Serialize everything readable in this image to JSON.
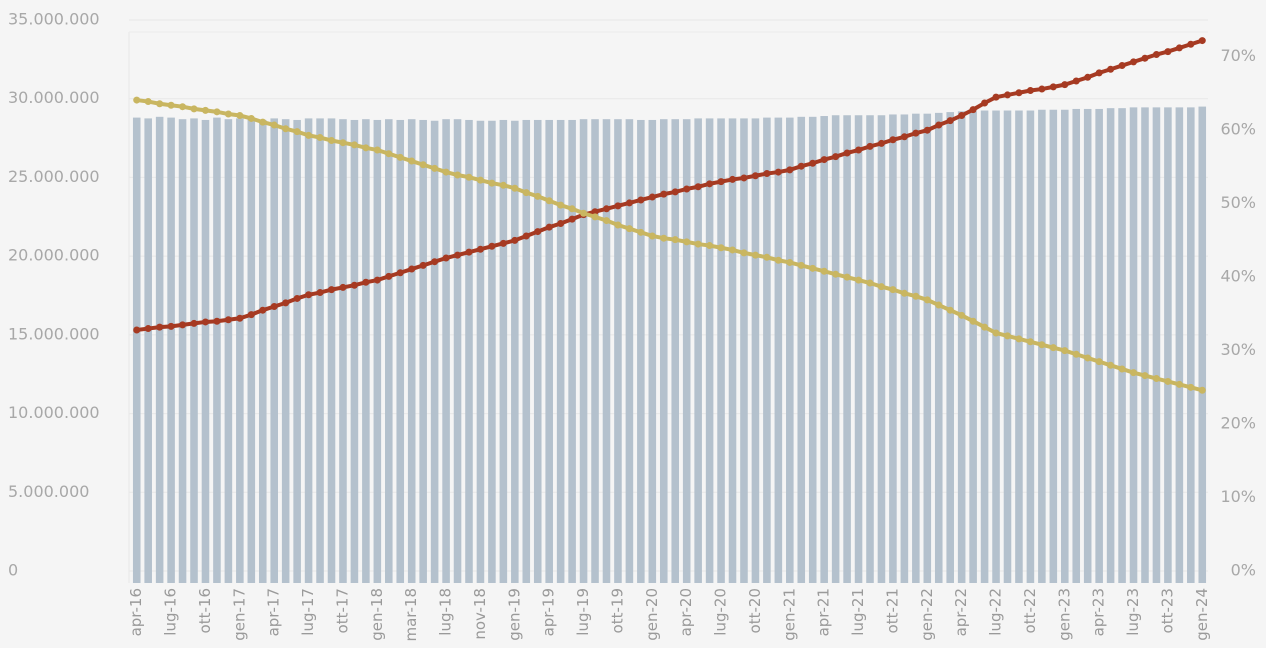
{
  "chart_data": {
    "type": "bar-line",
    "categories": [
      "apr-16",
      null,
      null,
      "lug-16",
      null,
      null,
      "ott-16",
      null,
      null,
      "gen-17",
      null,
      null,
      "apr-17",
      null,
      null,
      "lug-17",
      null,
      null,
      "ott-17",
      null,
      null,
      "gen-18",
      null,
      null,
      "mar-18",
      null,
      null,
      "lug-18",
      null,
      null,
      "nov-18",
      null,
      null,
      "gen-19",
      null,
      null,
      "apr-19",
      null,
      null,
      "lug-19",
      null,
      null,
      "ott-19",
      null,
      null,
      "gen-20",
      null,
      null,
      "apr-20",
      null,
      null,
      "lug-20",
      null,
      null,
      "ott-20",
      null,
      null,
      "gen-21",
      null,
      null,
      "apr-21",
      null,
      null,
      "lug-21",
      null,
      null,
      "ott-21",
      null,
      null,
      "gen-22",
      null,
      null,
      "apr-22",
      null,
      null,
      "lug-22",
      null,
      null,
      "ott-22",
      null,
      null,
      "gen-23",
      null,
      null,
      "apr-23",
      null,
      null,
      "lug-23",
      null,
      null,
      "ott-23",
      null,
      null,
      "gen-24"
    ],
    "series": [
      {
        "type": "bar",
        "color": "#b4c1cd",
        "values": [
          28800000,
          28750000,
          28850000,
          28800000,
          28700000,
          28750000,
          28650000,
          28800000,
          28700000,
          28750000,
          28700000,
          28650000,
          28750000,
          28700000,
          28650000,
          28750000,
          28750000,
          28750000,
          28700000,
          28650000,
          28700000,
          28650000,
          28700000,
          28650000,
          28700000,
          28650000,
          28600000,
          28700000,
          28700000,
          28650000,
          28600000,
          28600000,
          28650000,
          28600000,
          28650000,
          28650000,
          28650000,
          28650000,
          28650000,
          28700000,
          28700000,
          28700000,
          28700000,
          28700000,
          28650000,
          28650000,
          28700000,
          28700000,
          28700000,
          28750000,
          28750000,
          28750000,
          28750000,
          28750000,
          28750000,
          28800000,
          28800000,
          28800000,
          28850000,
          28850000,
          28900000,
          28950000,
          28950000,
          28950000,
          28950000,
          28950000,
          29000000,
          29000000,
          29050000,
          29050000,
          29100000,
          29150000,
          29200000,
          29200000,
          29250000,
          29250000,
          29250000,
          29250000,
          29250000,
          29300000,
          29300000,
          29300000,
          29350000,
          29350000,
          29350000,
          29400000,
          29400000,
          29450000,
          29450000,
          29450000,
          29450000,
          29450000,
          29450000,
          29500000
        ]
      },
      {
        "type": "line",
        "axis": "y2",
        "color": "#a63a22",
        "values": [
          32.8,
          33.0,
          33.2,
          33.3,
          33.5,
          33.7,
          33.9,
          34.0,
          34.2,
          34.4,
          34.9,
          35.5,
          36.0,
          36.5,
          37.1,
          37.6,
          37.9,
          38.3,
          38.6,
          38.9,
          39.3,
          39.6,
          40.1,
          40.6,
          41.1,
          41.6,
          42.1,
          42.6,
          43.0,
          43.4,
          43.8,
          44.2,
          44.6,
          45.0,
          45.6,
          46.2,
          46.8,
          47.3,
          47.9,
          48.5,
          48.9,
          49.3,
          49.7,
          50.1,
          50.5,
          50.9,
          51.3,
          51.6,
          52.0,
          52.3,
          52.7,
          53.0,
          53.3,
          53.5,
          53.8,
          54.1,
          54.3,
          54.6,
          55.1,
          55.5,
          56.0,
          56.4,
          56.9,
          57.3,
          57.8,
          58.2,
          58.7,
          59.1,
          59.6,
          60.0,
          60.7,
          61.3,
          62.0,
          62.8,
          63.7,
          64.5,
          64.8,
          65.1,
          65.4,
          65.6,
          65.9,
          66.2,
          66.7,
          67.2,
          67.8,
          68.3,
          68.8,
          69.3,
          69.8,
          70.3,
          70.7,
          71.2,
          71.7,
          72.2
        ]
      },
      {
        "type": "line",
        "axis": "y2",
        "color": "#c9b661",
        "values": [
          64.1,
          63.9,
          63.6,
          63.4,
          63.2,
          62.9,
          62.7,
          62.5,
          62.2,
          62.0,
          61.6,
          61.1,
          60.7,
          60.2,
          59.8,
          59.3,
          59.0,
          58.6,
          58.3,
          58.0,
          57.6,
          57.3,
          56.8,
          56.3,
          55.8,
          55.3,
          54.8,
          54.3,
          53.9,
          53.6,
          53.2,
          52.8,
          52.5,
          52.1,
          51.5,
          51.0,
          50.4,
          49.8,
          49.3,
          48.7,
          48.2,
          47.7,
          47.1,
          46.6,
          46.1,
          45.6,
          45.3,
          45.1,
          44.8,
          44.5,
          44.3,
          44.0,
          43.7,
          43.3,
          43.0,
          42.7,
          42.3,
          42.0,
          41.6,
          41.2,
          40.8,
          40.4,
          40.0,
          39.6,
          39.2,
          38.7,
          38.3,
          37.8,
          37.4,
          36.9,
          36.2,
          35.5,
          34.8,
          34.0,
          33.2,
          32.4,
          32.0,
          31.6,
          31.2,
          30.8,
          30.4,
          30.0,
          29.5,
          29.0,
          28.5,
          28.0,
          27.5,
          27.0,
          26.6,
          26.2,
          25.8,
          25.4,
          25.0,
          24.6
        ]
      }
    ],
    "ylim": [
      0,
      35000000
    ],
    "yticks": [
      {
        "value": 0,
        "label": "0"
      },
      {
        "value": 5000000,
        "label": "5.000.000"
      },
      {
        "value": 10000000,
        "label": "10.000.000"
      },
      {
        "value": 15000000,
        "label": "15.000.000"
      },
      {
        "value": 20000000,
        "label": "20.000.000"
      },
      {
        "value": 25000000,
        "label": "25.000.000"
      },
      {
        "value": 30000000,
        "label": "30.000.000"
      },
      {
        "value": 35000000,
        "label": "35.000.000"
      }
    ],
    "y2lim": [
      0,
      75
    ],
    "y2ticks": [
      {
        "value": 0,
        "label": "0%"
      },
      {
        "value": 10,
        "label": "10%"
      },
      {
        "value": 20,
        "label": "20%"
      },
      {
        "value": 30,
        "label": "30%"
      },
      {
        "value": 40,
        "label": "40%"
      },
      {
        "value": 50,
        "label": "50%"
      },
      {
        "value": 60,
        "label": "60%"
      },
      {
        "value": 70,
        "label": "70%"
      }
    ],
    "grid": true
  }
}
